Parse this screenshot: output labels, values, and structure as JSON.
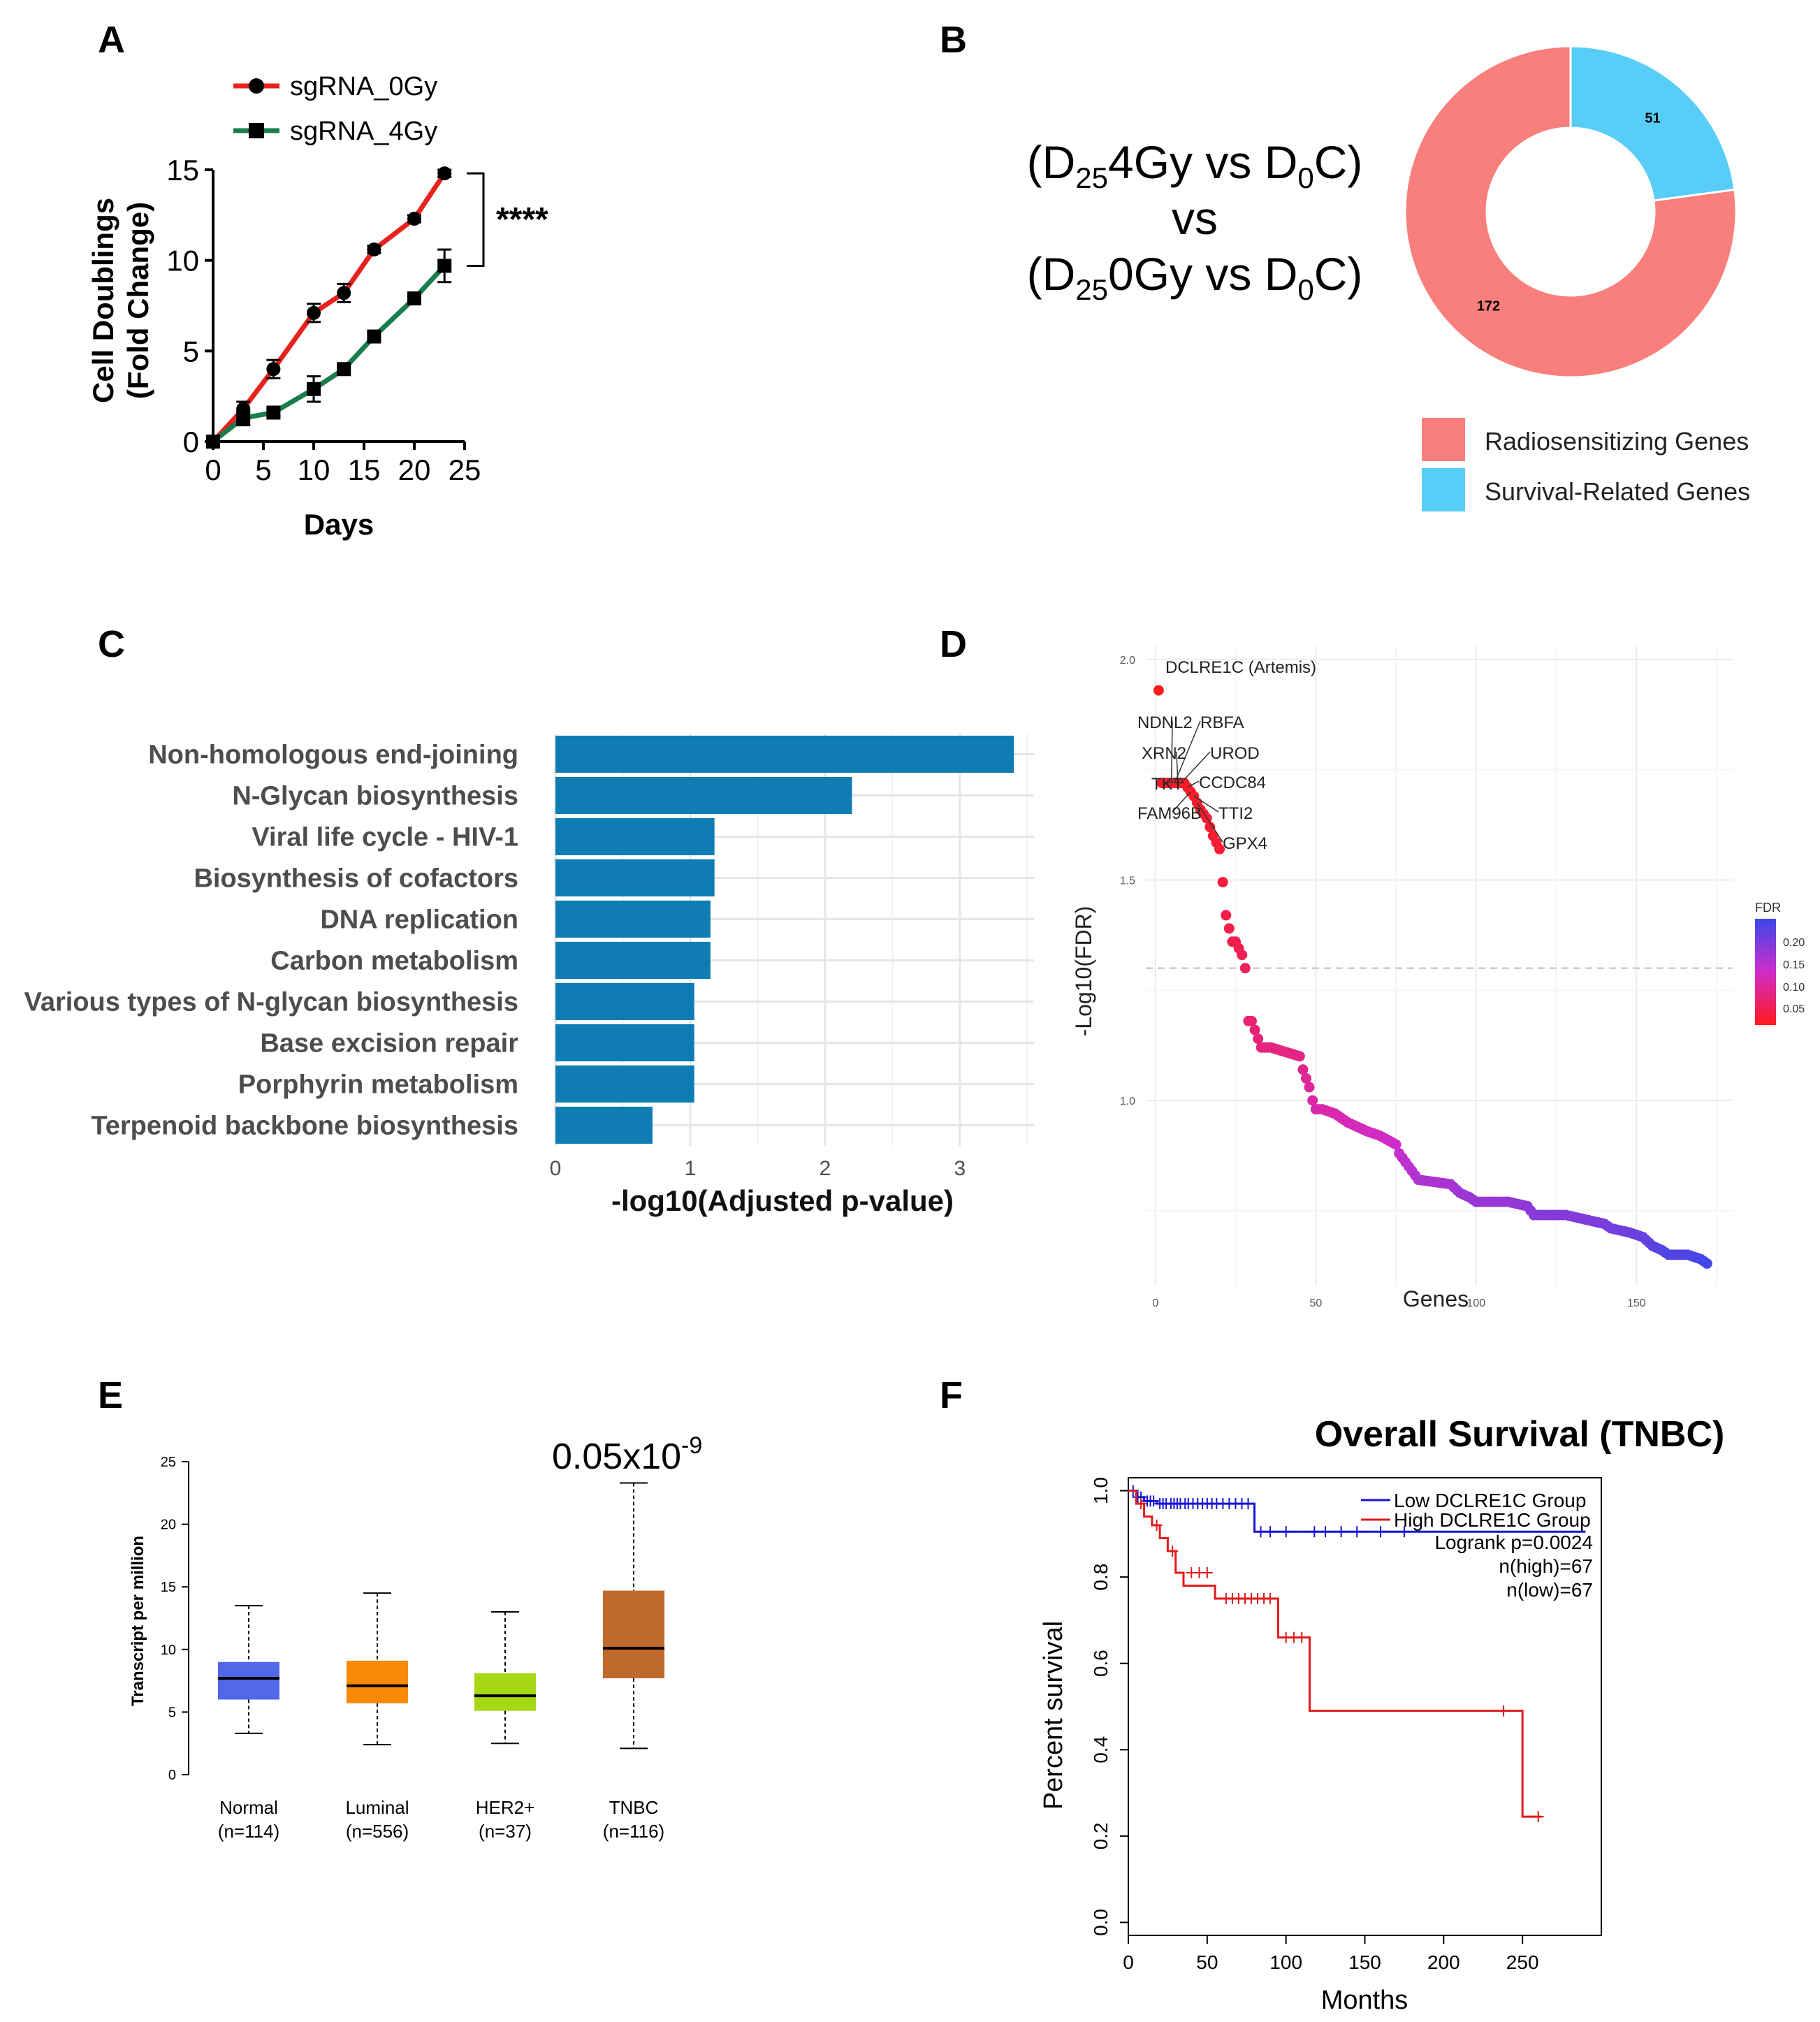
{
  "panel_labels": [
    "A",
    "B",
    "C",
    "D",
    "E",
    "F"
  ],
  "chart_data": [
    {
      "id": "A",
      "type": "line",
      "xlabel": "Days",
      "ylabel_line1": "Cell Doublings",
      "ylabel_line2": "(Fold Change)",
      "xlim": [
        0,
        25
      ],
      "ylim": [
        0,
        15
      ],
      "xticks": [
        0,
        5,
        10,
        15,
        20,
        25
      ],
      "yticks": [
        0,
        5,
        10,
        15
      ],
      "series": [
        {
          "name": "sgRNA_0Gy",
          "color": "#e8231f",
          "marker": "circle",
          "x": [
            0,
            3,
            6,
            10,
            13,
            16,
            20,
            23
          ],
          "y": [
            0,
            1.8,
            4.0,
            7.1,
            8.2,
            10.6,
            12.3,
            14.8
          ],
          "err": [
            0,
            0.4,
            0.5,
            0.5,
            0.5,
            0.2,
            0.2,
            0.2
          ]
        },
        {
          "name": "sgRNA_4Gy",
          "color": "#1a7d4b",
          "marker": "square",
          "x": [
            0,
            3,
            6,
            10,
            13,
            16,
            20,
            23
          ],
          "y": [
            0,
            1.3,
            1.6,
            2.9,
            4.0,
            5.8,
            7.9,
            9.7
          ],
          "err": [
            0,
            0.4,
            0.2,
            0.7,
            0.2,
            0.2,
            0.2,
            0.9
          ]
        }
      ],
      "annotation": "****"
    },
    {
      "id": "B",
      "type": "pie",
      "title_line1_a": "(D",
      "title_line1_sub1": "25",
      "title_line1_b": "4Gy vs D",
      "title_line1_sub2": "0",
      "title_line1_c": "C)",
      "title_line2": "vs",
      "title_line3_a": "(D",
      "title_line3_sub1": "25",
      "title_line3_b": "0Gy vs D",
      "title_line3_sub2": "0",
      "title_line3_c": "C)",
      "labels": [
        "Radiosensitizing Genes",
        "Survival-Related Genes"
      ],
      "values": [
        172,
        51
      ],
      "colors": [
        "#f87f7b",
        "#57cdf8"
      ]
    },
    {
      "id": "C",
      "type": "bar",
      "orientation": "horizontal",
      "categories": [
        "Non-homologous end-joining",
        "N-Glycan biosynthesis",
        "Viral life cycle - HIV-1",
        "Biosynthesis of cofactors",
        "DNA replication",
        "Carbon metabolism",
        "Various types of N-glycan biosynthesis",
        "Base excision repair",
        "Porphyrin metabolism",
        "Terpenoid backbone biosynthesis"
      ],
      "values": [
        3.4,
        2.2,
        1.18,
        1.18,
        1.15,
        1.15,
        1.03,
        1.03,
        1.03,
        0.72
      ],
      "xlabel": "-log10(Adjusted p-value)",
      "xlim": [
        0,
        3.55
      ],
      "xticks": [
        0,
        1,
        2,
        3
      ],
      "color": "#0f7db4"
    },
    {
      "id": "D",
      "type": "scatter",
      "xlabel": "Genes",
      "ylabel": "-Log10(FDR)",
      "xlim": [
        -3,
        180
      ],
      "ylim": [
        0.58,
        2.03
      ],
      "xticks": [
        0,
        50,
        100,
        150
      ],
      "yticks": [
        1.0,
        1.5,
        2.0
      ],
      "ytick_labels": [
        "1.0",
        "1.5",
        "2.0"
      ],
      "threshold": 1.3,
      "n_points": 172,
      "profile_x": [
        1,
        2,
        9,
        12,
        14,
        16,
        18,
        20,
        22,
        24,
        25,
        27,
        28,
        29,
        30,
        33,
        36,
        45,
        46,
        48,
        49,
        50,
        52,
        56,
        60,
        66,
        70,
        75,
        76,
        80,
        82,
        92,
        95,
        98,
        100,
        104,
        110,
        116,
        118,
        122,
        128,
        140,
        142,
        148,
        152,
        155,
        158,
        160,
        166,
        170,
        172
      ],
      "profile_y": [
        1.93,
        1.72,
        1.72,
        1.69,
        1.66,
        1.64,
        1.6,
        1.57,
        1.42,
        1.36,
        1.36,
        1.33,
        1.3,
        1.18,
        1.18,
        1.12,
        1.12,
        1.1,
        1.07,
        1.03,
        1.0,
        0.98,
        0.98,
        0.97,
        0.95,
        0.93,
        0.92,
        0.9,
        0.88,
        0.84,
        0.82,
        0.81,
        0.79,
        0.78,
        0.77,
        0.77,
        0.77,
        0.76,
        0.74,
        0.74,
        0.74,
        0.72,
        0.71,
        0.7,
        0.69,
        0.67,
        0.66,
        0.65,
        0.65,
        0.64,
        0.63
      ],
      "labels": [
        {
          "text": "DCLRE1C (Artemis)",
          "gene": 1
        },
        {
          "text": "NDNL2",
          "gene": 5
        },
        {
          "text": "RBFA",
          "gene": 6
        },
        {
          "text": "XRN2",
          "gene": 7
        },
        {
          "text": "UROD",
          "gene": 8
        },
        {
          "text": "TKT",
          "gene": 9
        },
        {
          "text": "CCDC84",
          "gene": 10
        },
        {
          "text": "FAM96B",
          "gene": 11
        },
        {
          "text": "TTI2",
          "gene": 12
        },
        {
          "text": "GPX4",
          "gene": 13
        }
      ],
      "colorbar": {
        "title": "FDR",
        "ticks": [
          "0.20",
          "0.15",
          "0.10",
          "0.05"
        ],
        "low_color": "#ff1a1a",
        "mid_color": "#d02ccb",
        "high_color": "#3a49e8"
      }
    },
    {
      "id": "E",
      "type": "box",
      "ylabel": "Transcript per million",
      "ylim": [
        0,
        25
      ],
      "yticks": [
        0,
        5,
        10,
        15,
        20,
        25
      ],
      "annotation_base": "0.05x10",
      "annotation_exp": "-9",
      "groups": [
        {
          "name": "Normal",
          "n": "(n=114)",
          "whisker_low": 3.3,
          "q1": 6.0,
          "median": 7.7,
          "q3": 9.0,
          "whisker_high": 13.5,
          "color": "#5168e8"
        },
        {
          "name": "Luminal",
          "n": "(n=556)",
          "whisker_low": 2.4,
          "q1": 5.7,
          "median": 7.1,
          "q3": 9.1,
          "whisker_high": 14.5,
          "color": "#f98a06"
        },
        {
          "name": "HER2+",
          "n": "(n=37)",
          "whisker_low": 2.5,
          "q1": 5.1,
          "median": 6.3,
          "q3": 8.1,
          "whisker_high": 13.0,
          "color": "#a5d712"
        },
        {
          "name": "TNBC",
          "n": "(n=116)",
          "whisker_low": 2.1,
          "q1": 7.7,
          "median": 10.1,
          "q3": 14.7,
          "whisker_high": 23.3,
          "color": "#c0692c"
        }
      ]
    },
    {
      "id": "F",
      "type": "line",
      "subtype": "kaplan-meier",
      "title": "Overall Survival (TNBC)",
      "xlabel": "Months",
      "ylabel": "Percent survival",
      "xlim": [
        0,
        300
      ],
      "ylim": [
        -0.03,
        1.03
      ],
      "xticks": [
        0,
        50,
        100,
        150,
        200,
        250
      ],
      "yticks": [
        "0.0",
        "0.2",
        "0.4",
        "0.6",
        "0.8",
        "1.0"
      ],
      "series": [
        {
          "name": "Low DCLRE1C Group",
          "color": "#1515d6",
          "x": [
            0,
            5,
            5,
            10,
            10,
            18,
            18,
            80,
            80,
            290
          ],
          "y": [
            1.0,
            1.0,
            0.985,
            0.985,
            0.976,
            0.976,
            0.97,
            0.97,
            0.905,
            0.905
          ],
          "censor_x": [
            3,
            6,
            8,
            12,
            14,
            16,
            20,
            22,
            24,
            27,
            29,
            31,
            33,
            36,
            38,
            41,
            44,
            47,
            50,
            53,
            56,
            60,
            64,
            68,
            72,
            76,
            84,
            90,
            100,
            118,
            125,
            135,
            145,
            160,
            175
          ],
          "censor_y": [
            1.0,
            0.985,
            0.985,
            0.976,
            0.976,
            0.976,
            0.97,
            0.97,
            0.97,
            0.97,
            0.97,
            0.97,
            0.97,
            0.97,
            0.97,
            0.97,
            0.97,
            0.97,
            0.97,
            0.97,
            0.97,
            0.97,
            0.97,
            0.97,
            0.97,
            0.97,
            0.905,
            0.905,
            0.905,
            0.905,
            0.905,
            0.905,
            0.905,
            0.905,
            0.905
          ]
        },
        {
          "name": "High DCLRE1C Group",
          "color": "#e11a1a",
          "x": [
            0,
            5,
            5,
            10,
            10,
            15,
            15,
            20,
            20,
            25,
            25,
            30,
            30,
            35,
            35,
            55,
            55,
            95,
            95,
            115,
            115,
            250,
            250,
            262
          ],
          "y": [
            1.0,
            1.0,
            0.97,
            0.97,
            0.94,
            0.94,
            0.92,
            0.92,
            0.89,
            0.89,
            0.86,
            0.86,
            0.81,
            0.81,
            0.78,
            0.78,
            0.75,
            0.75,
            0.66,
            0.66,
            0.49,
            0.49,
            0.245,
            0.245
          ],
          "censor_x": [
            8,
            18,
            28,
            40,
            45,
            50,
            62,
            66,
            70,
            74,
            78,
            82,
            86,
            90,
            100,
            105,
            110,
            238,
            260
          ],
          "censor_y": [
            0.97,
            0.92,
            0.86,
            0.81,
            0.81,
            0.81,
            0.75,
            0.75,
            0.75,
            0.75,
            0.75,
            0.75,
            0.75,
            0.75,
            0.66,
            0.66,
            0.66,
            0.49,
            0.245
          ]
        }
      ],
      "stats": [
        "Logrank p=0.0024",
        "n(high)=67",
        "n(low)=67"
      ]
    }
  ]
}
